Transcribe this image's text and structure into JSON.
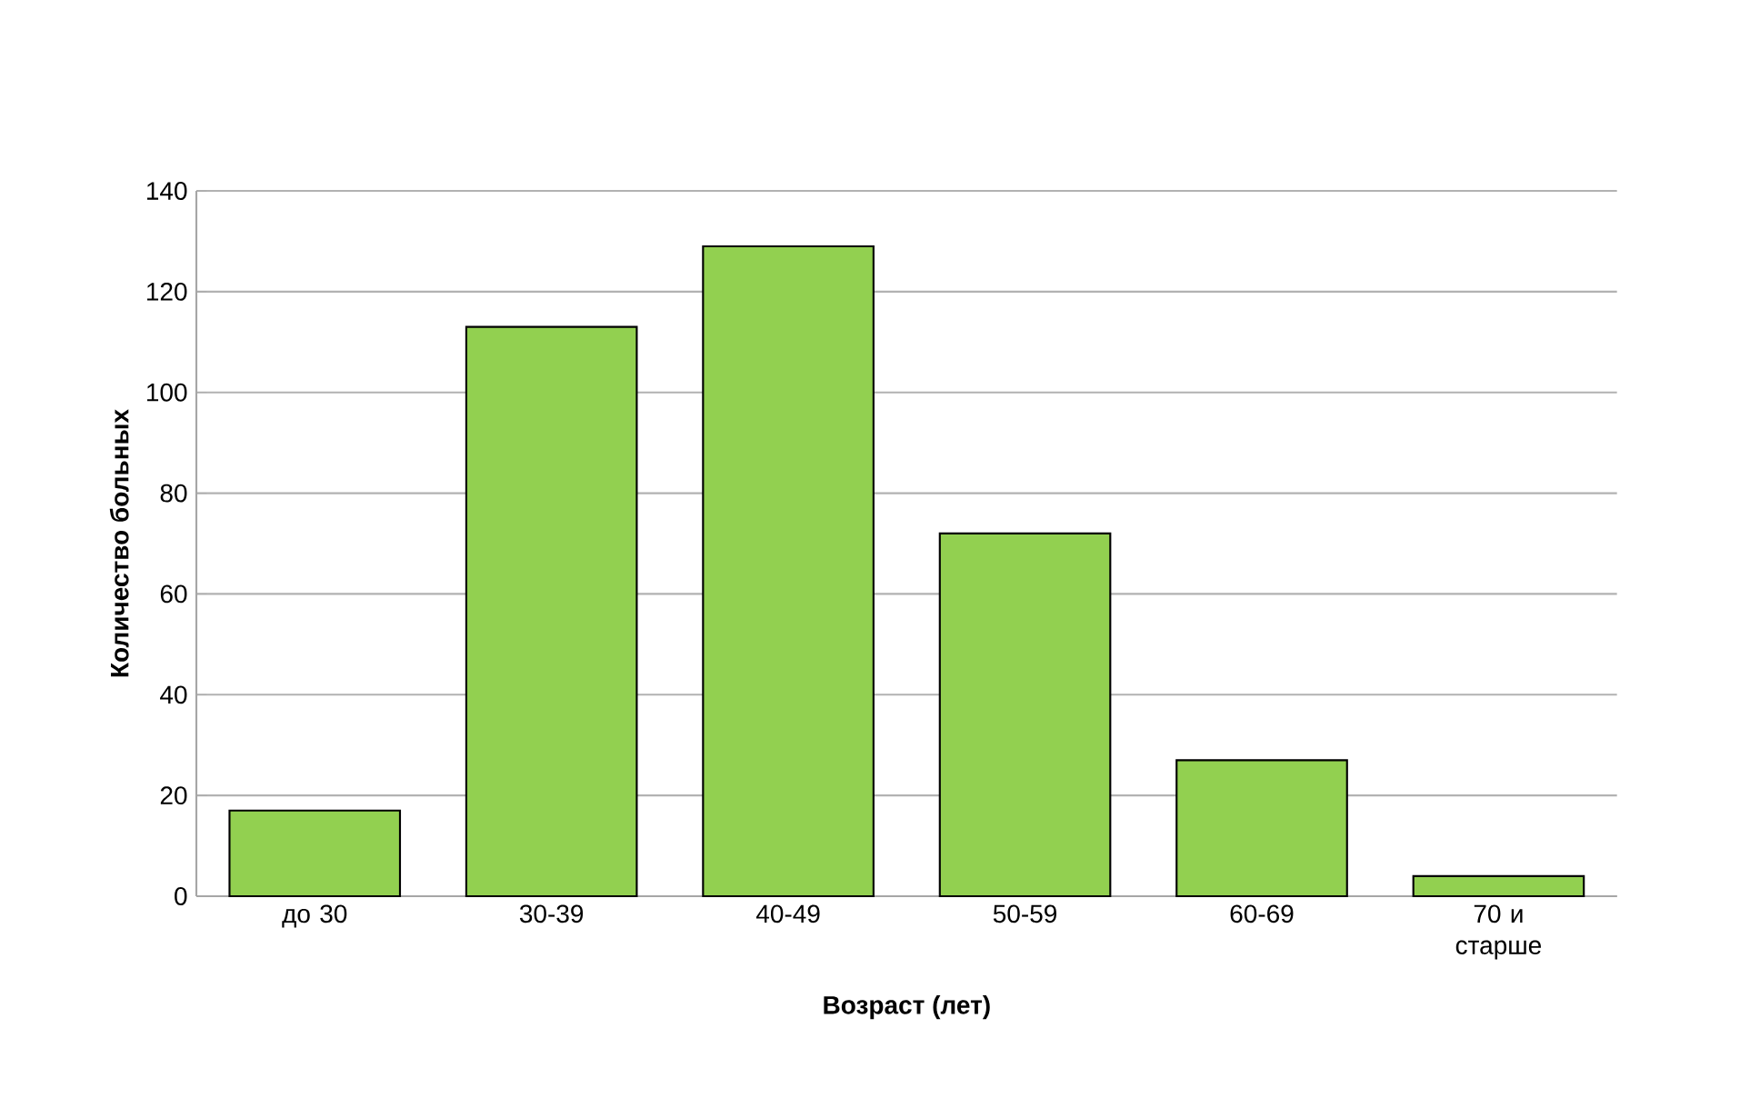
{
  "chart_data": {
    "type": "bar",
    "categories": [
      "до 30",
      "30-39",
      "40-49",
      "50-59",
      "60-69",
      "70 и старше"
    ],
    "values": [
      17,
      113,
      129,
      72,
      27,
      4
    ],
    "color": "#92d050",
    "xlabel": "Возраст (лет)",
    "ylabel": "Количество больных",
    "ylim": [
      0,
      140
    ],
    "yticks": [
      0,
      20,
      40,
      60,
      80,
      100,
      120,
      140
    ],
    "grid": "y"
  }
}
